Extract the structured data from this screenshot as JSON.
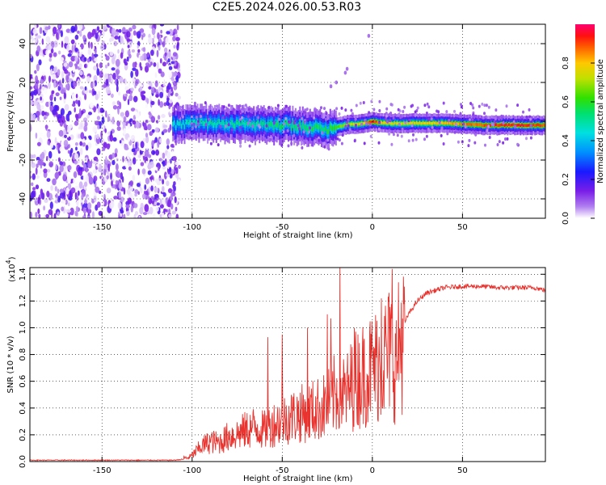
{
  "title": "C2E5.2024.026.00.53.R03",
  "chart_data": [
    {
      "type": "heatmap",
      "xlabel": "Height of straight line (km)",
      "ylabel": "Frequency (Hz)",
      "xlim": [
        -190,
        96
      ],
      "ylim": [
        -50,
        50
      ],
      "xticks": [
        -150,
        -100,
        -50,
        0,
        50
      ],
      "xtick_labels": [
        "-150",
        "-100",
        "-50",
        "0",
        "50"
      ],
      "yticks": [
        -40,
        -20,
        0,
        20,
        40
      ],
      "ytick_labels": [
        "-40",
        "-20",
        "0",
        "20",
        "40"
      ],
      "colorbar": {
        "label": "Normalized spectral amplitude",
        "range": [
          0,
          1
        ],
        "ticks": [
          0.0,
          0.2,
          0.4,
          0.6,
          0.8
        ],
        "tick_labels": [
          "0.0",
          "0.2",
          "0.4",
          "0.6",
          "0.8"
        ]
      },
      "description_regions": [
        {
          "x_range": [
            -190,
            -110
          ],
          "pattern": "broadband scattered noise, amplitude ~0.0-0.2"
        },
        {
          "x_range": [
            -110,
            -20
          ],
          "pattern": "band centred near -2 Hz, width ~10 Hz, peak amplitude ~0.5-0.6"
        },
        {
          "x_range": [
            -20,
            96
          ],
          "pattern": "narrow band near 0 to -2 Hz, amplitude ~0.6-1.0"
        }
      ],
      "ridge": {
        "x": [
          -110,
          -90,
          -70,
          -50,
          -35,
          -25,
          -15,
          -5,
          0,
          5,
          10,
          20,
          40,
          60,
          80,
          96
        ],
        "freq": [
          -2,
          -1,
          -2,
          -2,
          -3,
          -4,
          -2,
          -1,
          0,
          -1,
          -1,
          -1,
          -1,
          -2,
          -2,
          -2
        ],
        "amplitude": [
          0.45,
          0.5,
          0.5,
          0.55,
          0.55,
          0.55,
          0.7,
          0.8,
          0.95,
          0.8,
          0.75,
          0.75,
          0.8,
          0.9,
          0.95,
          0.9
        ]
      },
      "grid": true
    },
    {
      "type": "line",
      "xlabel": "Height of straight line (km)",
      "ylabel": "SNR (10 * v/v)",
      "y_multiplier_label": "(x10",
      "y_multiplier_exp": "4",
      "y_multiplier_close": ")",
      "xlim": [
        -190,
        96
      ],
      "ylim": [
        0,
        1.45
      ],
      "xticks": [
        -150,
        -100,
        -50,
        0,
        50
      ],
      "xtick_labels": [
        "-150",
        "-100",
        "-50",
        "0",
        "50"
      ],
      "yticks": [
        0.0,
        0.2,
        0.4,
        0.6,
        0.8,
        1.0,
        1.2,
        1.4
      ],
      "ytick_labels": [
        "0.0",
        "0.2",
        "0.4",
        "0.6",
        "0.8",
        "1.0",
        "1.2",
        "1.4"
      ],
      "series": [
        {
          "color": "#e8332e",
          "x": [
            -190,
            -150,
            -110,
            -103,
            -100,
            -95,
            -90,
            -85,
            -80,
            -75,
            -70,
            -65,
            -60,
            -55,
            -50,
            -45,
            -40,
            -35,
            -30,
            -25,
            -20,
            -18,
            -15,
            -10,
            -5,
            0,
            5,
            8,
            10,
            12,
            13,
            15,
            20,
            25,
            30,
            40,
            50,
            60,
            70,
            80,
            90,
            96
          ],
          "y": [
            0.01,
            0.01,
            0.01,
            0.02,
            0.05,
            0.12,
            0.16,
            0.15,
            0.2,
            0.22,
            0.25,
            0.28,
            0.25,
            0.3,
            0.33,
            0.36,
            0.38,
            0.4,
            0.42,
            0.45,
            0.55,
            0.6,
            0.52,
            0.65,
            0.7,
            0.75,
            0.8,
            0.85,
            0.9,
            0.82,
            0.75,
            0.95,
            1.1,
            1.2,
            1.26,
            1.3,
            1.31,
            1.31,
            1.3,
            1.3,
            1.3,
            1.28
          ]
        }
      ],
      "spikes": [
        {
          "x": -18,
          "y": 1.48
        },
        {
          "x": 11,
          "y": 1.44
        },
        {
          "x": -50,
          "y": 0.95
        },
        {
          "x": -58,
          "y": 0.93
        },
        {
          "x": -36,
          "y": 1.0
        },
        {
          "x": -23,
          "y": 1.07
        },
        {
          "x": -25,
          "y": 1.1
        },
        {
          "x": -10,
          "y": 1.0
        },
        {
          "x": 5,
          "y": 1.22
        }
      ],
      "grid": true
    }
  ]
}
